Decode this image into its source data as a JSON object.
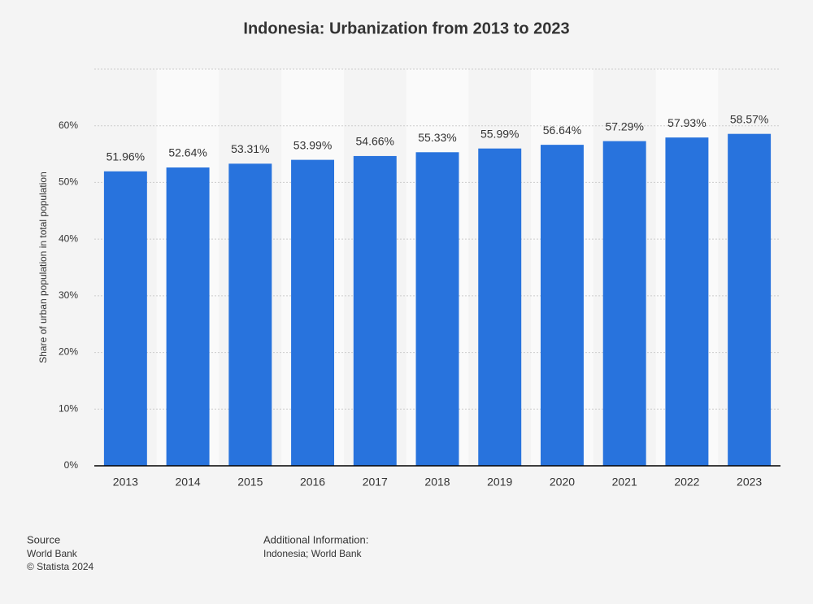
{
  "chart_data": {
    "type": "bar",
    "title": "Indonesia: Urbanization from 2013 to 2023",
    "y_label": "Share of urban population in total population",
    "categories": [
      "2013",
      "2014",
      "2015",
      "2016",
      "2017",
      "2018",
      "2019",
      "2020",
      "2021",
      "2022",
      "2023"
    ],
    "values": [
      51.96,
      52.64,
      53.31,
      53.99,
      54.66,
      55.33,
      55.99,
      56.64,
      57.29,
      57.93,
      58.57
    ],
    "value_labels": [
      "51.96%",
      "52.64%",
      "53.31%",
      "53.99%",
      "54.66%",
      "55.33%",
      "55.99%",
      "56.64%",
      "57.29%",
      "57.93%",
      "58.57%"
    ],
    "color": "#2873dd",
    "ylim": [
      0,
      70
    ],
    "yticks": [
      {
        "value": 0,
        "label": "0%"
      },
      {
        "value": 10,
        "label": "10%"
      },
      {
        "value": 20,
        "label": "20%"
      },
      {
        "value": 30,
        "label": "30%"
      },
      {
        "value": 40,
        "label": "40%"
      },
      {
        "value": 50,
        "label": "50%"
      },
      {
        "value": 60,
        "label": "60%"
      }
    ],
    "grid": true
  },
  "footer": {
    "source_title": "Source",
    "source_lines": [
      "World Bank",
      "© Statista 2024"
    ],
    "info_title": "Additional Information:",
    "info_lines": [
      "Indonesia; World Bank"
    ]
  }
}
